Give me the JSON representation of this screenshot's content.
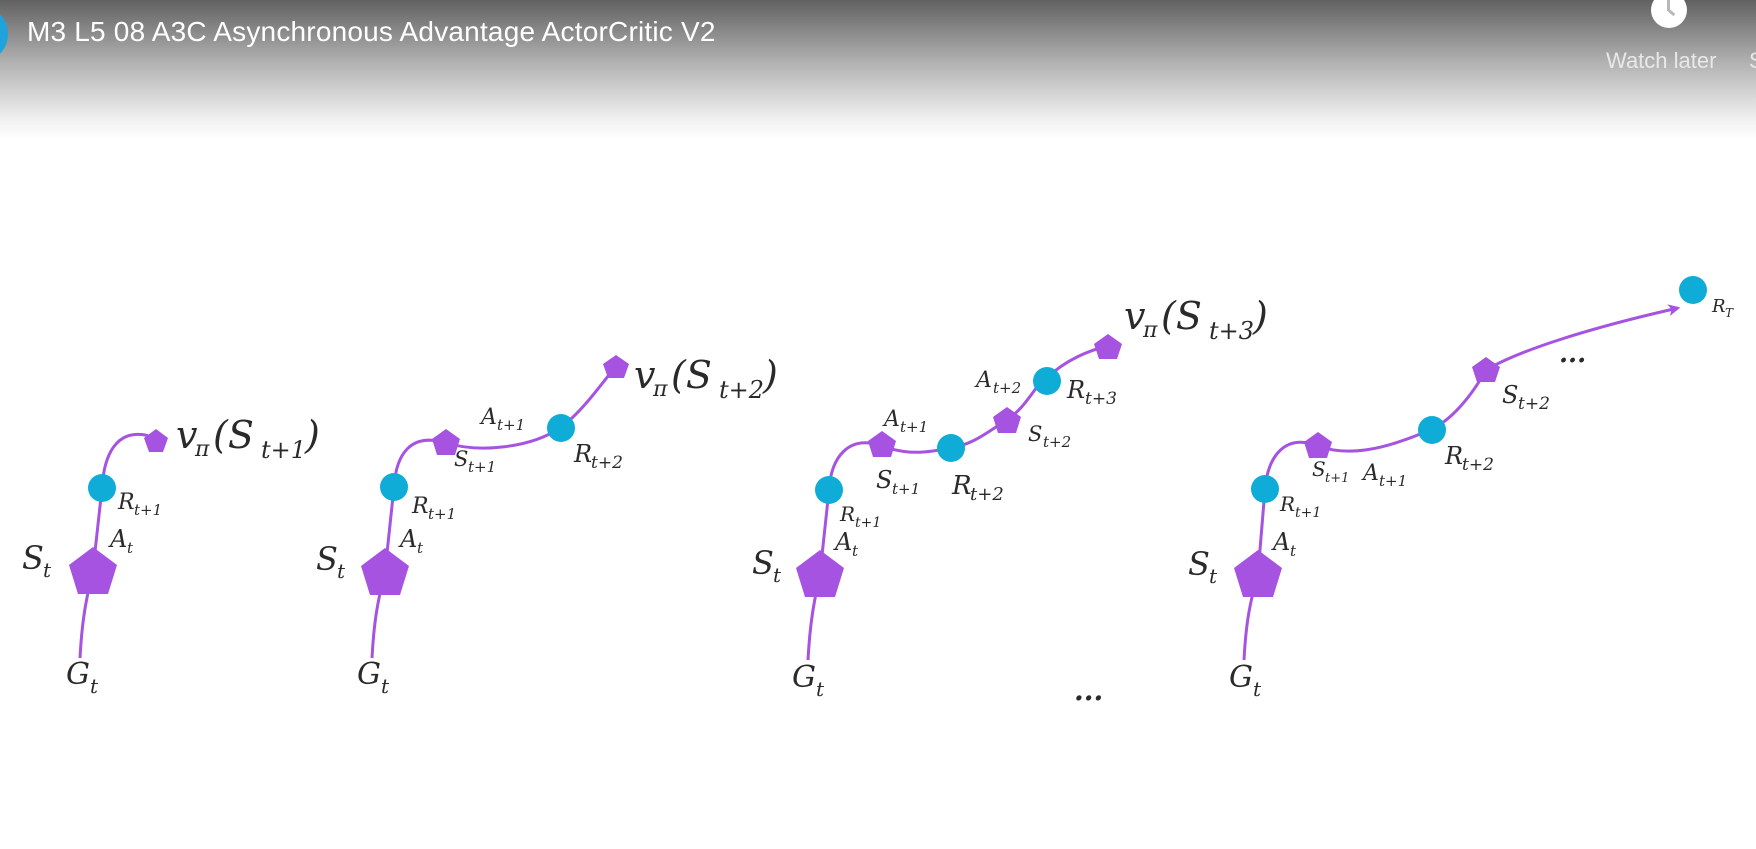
{
  "player": {
    "title": "M3 L5 08 A3C Asynchronous Advantage ActorCritic V2",
    "watch_later_label": "Watch later",
    "share_partial": "S"
  },
  "colors": {
    "state": "#a553e0",
    "reward": "#10acd8",
    "edge": "#a553e0",
    "text": "#2a2a2a"
  },
  "diagram": {
    "ellipsis": "..."
  }
}
